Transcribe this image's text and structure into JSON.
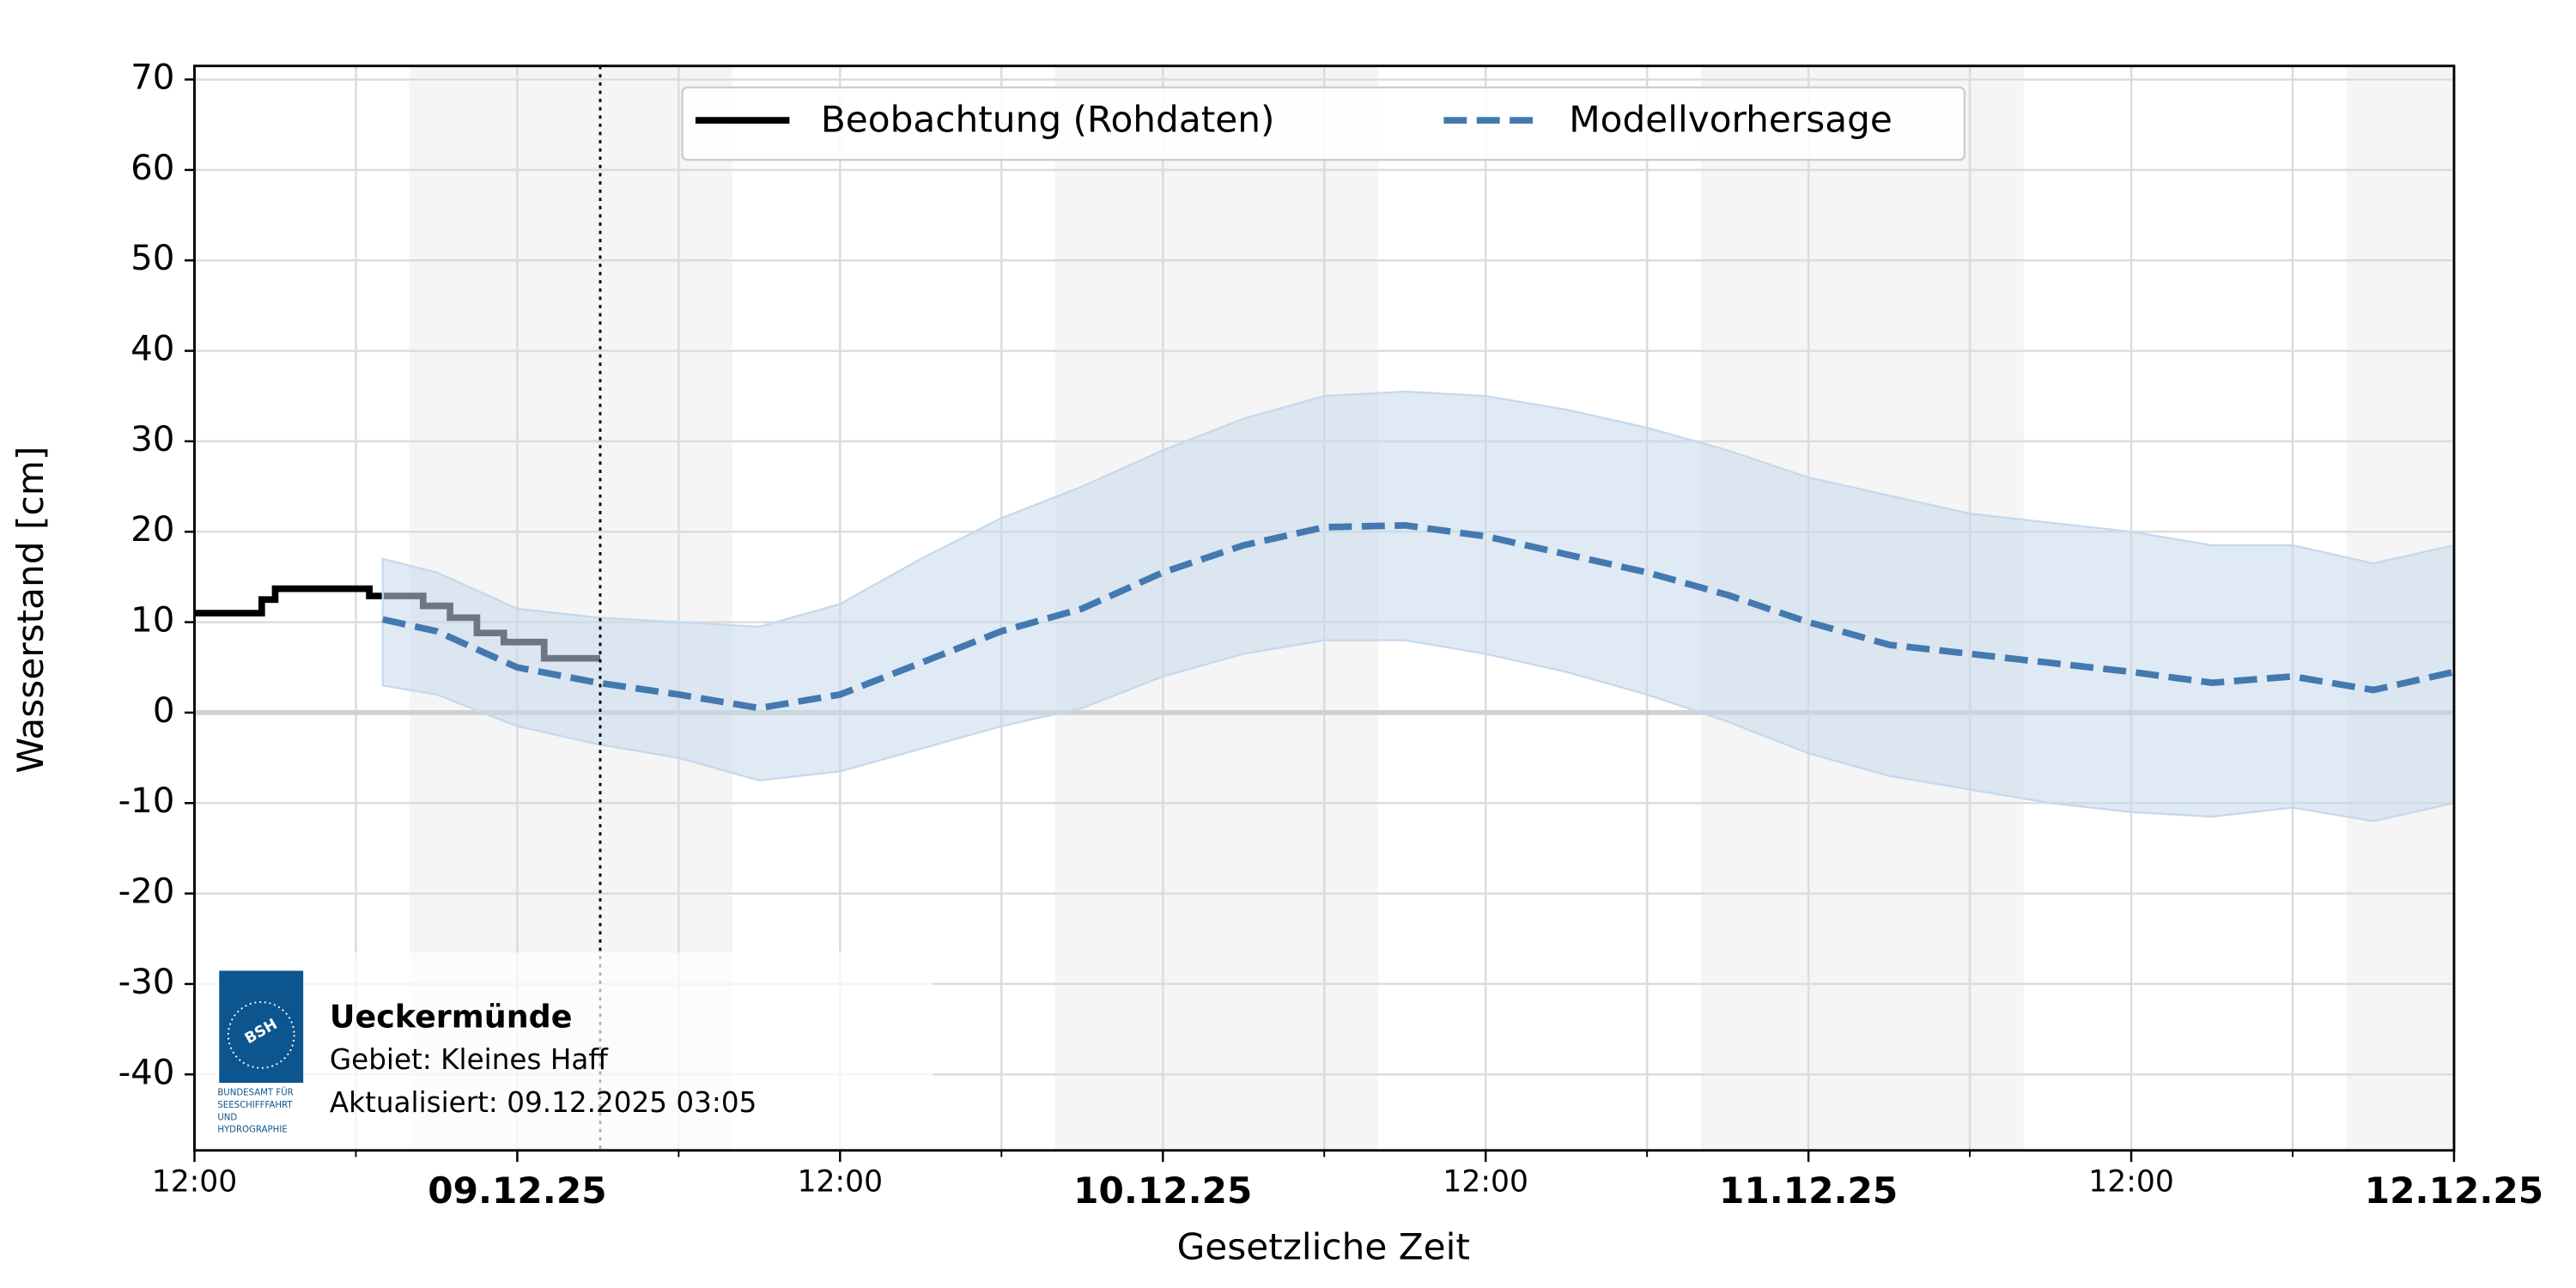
{
  "chart_data": {
    "type": "line",
    "ylabel": "Wasserstand [cm]",
    "xlabel": "Gesetzliche Zeit",
    "xlim": [
      "2025-12-08T12:00",
      "2025-12-12T00:00"
    ],
    "xticks": [
      {
        "value": "2025-12-08T12:00",
        "label": "12:00"
      },
      {
        "value": "2025-12-09T00:00",
        "label": "09.12.25"
      },
      {
        "value": "2025-12-09T12:00",
        "label": "12:00"
      },
      {
        "value": "2025-12-10T00:00",
        "label": "10.12.25"
      },
      {
        "value": "2025-12-10T12:00",
        "label": "12:00"
      },
      {
        "value": "2025-12-11T00:00",
        "label": "11.12.25"
      },
      {
        "value": "2025-12-11T12:00",
        "label": "12:00"
      },
      {
        "value": "2025-12-12T00:00",
        "label": "12.12.25"
      }
    ],
    "xminor_ticks": [
      "2025-12-08T18:00",
      "2025-12-09T06:00",
      "2025-12-09T18:00",
      "2025-12-10T06:00",
      "2025-12-10T18:00",
      "2025-12-11T06:00",
      "2025-12-11T18:00"
    ],
    "ylim": [
      -48.4,
      71.5
    ],
    "yticks": [
      -40,
      -30,
      -20,
      -10,
      0,
      10,
      20,
      30,
      40,
      50,
      60,
      70
    ],
    "grid": true,
    "reference_line": 0,
    "night_shading": [
      [
        "2025-12-08T20:00",
        "2025-12-09T08:00"
      ],
      [
        "2025-12-09T20:00",
        "2025-12-10T08:00"
      ],
      [
        "2025-12-10T20:00",
        "2025-12-11T08:00"
      ],
      [
        "2025-12-11T20:00",
        "2025-12-12T00:00"
      ]
    ],
    "now_line": "2025-12-09T03:05",
    "legend": "upper center",
    "series": [
      {
        "name": "Beobachtung (Rohdaten)",
        "color": "#000000",
        "style": "solid",
        "step": true,
        "x": [
          "2025-12-08T12:00",
          "2025-12-08T12:30",
          "2025-12-08T13:00",
          "2025-12-08T13:30",
          "2025-12-08T14:00",
          "2025-12-08T14:30",
          "2025-12-08T15:00",
          "2025-12-08T15:30",
          "2025-12-08T16:00",
          "2025-12-08T16:30",
          "2025-12-08T17:00",
          "2025-12-08T17:30",
          "2025-12-08T18:00",
          "2025-12-08T18:30",
          "2025-12-08T19:00",
          "2025-12-08T19:30",
          "2025-12-08T20:00",
          "2025-12-08T20:30",
          "2025-12-08T21:00",
          "2025-12-08T21:30",
          "2025-12-08T22:00",
          "2025-12-08T22:30",
          "2025-12-08T23:00",
          "2025-12-08T23:30",
          "2025-12-09T00:00",
          "2025-12-09T00:30",
          "2025-12-09T01:00",
          "2025-12-09T01:30",
          "2025-12-09T02:00",
          "2025-12-09T02:30",
          "2025-12-09T03:00",
          "2025-12-09T03:05"
        ],
        "values": [
          11,
          11,
          11,
          11,
          11,
          12.5,
          13.7,
          13.7,
          13.7,
          13.7,
          13.7,
          13.7,
          13.7,
          12.9,
          12.9,
          12.9,
          12.9,
          11.8,
          11.8,
          10.5,
          10.5,
          8.8,
          8.8,
          7.8,
          7.8,
          7.8,
          6,
          6,
          6,
          6,
          6,
          6
        ]
      },
      {
        "name": "Modellvorhersage",
        "color": "#4479b0",
        "style": "dashed",
        "band_color": "#c5d9ec",
        "x": [
          "2025-12-08T19:00",
          "2025-12-08T21:00",
          "2025-12-09T00:00",
          "2025-12-09T03:00",
          "2025-12-09T06:00",
          "2025-12-09T09:00",
          "2025-12-09T12:00",
          "2025-12-09T15:00",
          "2025-12-09T18:00",
          "2025-12-09T21:00",
          "2025-12-10T00:00",
          "2025-12-10T03:00",
          "2025-12-10T06:00",
          "2025-12-10T09:00",
          "2025-12-10T12:00",
          "2025-12-10T15:00",
          "2025-12-10T18:00",
          "2025-12-10T21:00",
          "2025-12-11T00:00",
          "2025-12-11T03:00",
          "2025-12-11T06:00",
          "2025-12-11T09:00",
          "2025-12-11T12:00",
          "2025-12-11T15:00",
          "2025-12-11T18:00",
          "2025-12-11T21:00",
          "2025-12-12T00:00"
        ],
        "values": [
          10.3,
          9,
          5,
          3.3,
          2,
          0.5,
          2,
          5.5,
          9,
          11.5,
          15.5,
          18.5,
          20.5,
          20.7,
          19.5,
          17.5,
          15.5,
          13,
          10,
          7.5,
          6.5,
          5.5,
          4.5,
          3.3,
          4,
          2.5,
          4.5
        ],
        "upper": [
          17,
          15.5,
          11.5,
          10.5,
          10,
          9.5,
          12,
          17,
          21.5,
          25,
          29,
          32.5,
          35,
          35.5,
          35,
          33.5,
          31.5,
          29,
          26,
          24,
          22,
          21,
          20,
          18.5,
          18.5,
          16.5,
          18.5
        ],
        "lower": [
          3,
          2,
          -1.5,
          -3.5,
          -5,
          -7.5,
          -6.5,
          -4,
          -1.5,
          0.5,
          4,
          6.5,
          8,
          8,
          6.5,
          4.5,
          2,
          -1,
          -4.5,
          -7,
          -8.5,
          -10,
          -11,
          -11.5,
          -10.5,
          -12,
          -10
        ]
      }
    ]
  },
  "info_box": {
    "station": "Ueckermünde",
    "area": "Gebiet: Kleines Haff",
    "updated": "Aktualisiert: 09.12.2025 03:05",
    "logo_mark": "BSH",
    "logo_lines": [
      "BUNDESAMT FÜR",
      "SEESCHIFFFAHRT",
      "UND",
      "HYDROGRAPHIE"
    ]
  }
}
